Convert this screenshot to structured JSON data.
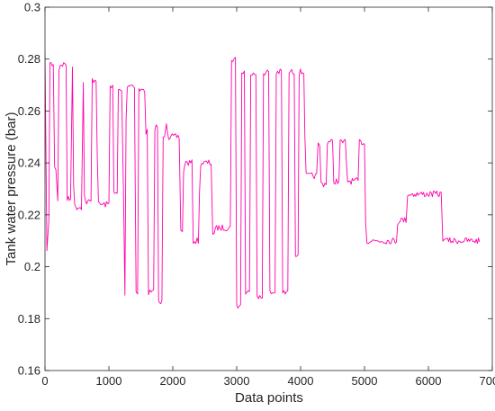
{
  "chart_data": {
    "type": "line",
    "title": "",
    "xlabel": "Data points",
    "ylabel": "Tank water pressure (bar)",
    "xlim": [
      0,
      7000
    ],
    "ylim": [
      0.16,
      0.3
    ],
    "xticks": [
      0,
      1000,
      2000,
      3000,
      4000,
      5000,
      6000,
      7000
    ],
    "xtick_labels": [
      "0",
      "1000",
      "2000",
      "3000",
      "4000",
      "5000",
      "6000",
      "7000"
    ],
    "yticks": [
      0.16,
      0.18,
      0.2,
      0.22,
      0.24,
      0.26,
      0.28,
      0.3
    ],
    "ytick_labels": [
      "0.16",
      "0.18",
      "0.2",
      "0.22",
      "0.24",
      "0.26",
      "0.28",
      "0.3"
    ],
    "grid": false,
    "legend": "none",
    "line_color": "#ff00aa",
    "series": [
      {
        "description": "square-wave pressure signal; sample points (x, y) read at transitions",
        "x": [
          0,
          30,
          60,
          130,
          170,
          200,
          330,
          400,
          430,
          570,
          600,
          720,
          800,
          1000,
          1060,
          1130,
          1200,
          1230,
          1250,
          1400,
          1450,
          1560,
          1600,
          1700,
          1760,
          1830,
          1870,
          1900,
          2100,
          2150,
          2300,
          2400,
          2600,
          2650,
          2900,
          2980,
          3060,
          3120,
          3200,
          3300,
          3400,
          3500,
          3600,
          3700,
          3800,
          3900,
          3960,
          4050,
          4250,
          4300,
          4400,
          4500,
          4600,
          4700,
          4900,
          5000,
          5150,
          5200,
          5500,
          5650,
          5700,
          6200,
          6250,
          6300,
          6800
        ],
        "y": [
          0.282,
          0.205,
          0.219,
          0.278,
          0.238,
          0.226,
          0.278,
          0.226,
          0.278,
          0.223,
          0.272,
          0.225,
          0.272,
          0.224,
          0.27,
          0.228,
          0.268,
          0.226,
          0.19,
          0.27,
          0.19,
          0.268,
          0.252,
          0.19,
          0.254,
          0.186,
          0.251,
          0.256,
          0.25,
          0.214,
          0.24,
          0.21,
          0.24,
          0.213,
          0.215,
          0.28,
          0.185,
          0.275,
          0.19,
          0.275,
          0.188,
          0.275,
          0.19,
          0.275,
          0.19,
          0.275,
          0.205,
          0.275,
          0.235,
          0.247,
          0.232,
          0.248,
          0.233,
          0.248,
          0.233,
          0.248,
          0.21,
          0.21,
          0.21,
          0.218,
          0.228,
          0.228,
          0.211,
          0.21,
          0.21
        ]
      }
    ]
  }
}
